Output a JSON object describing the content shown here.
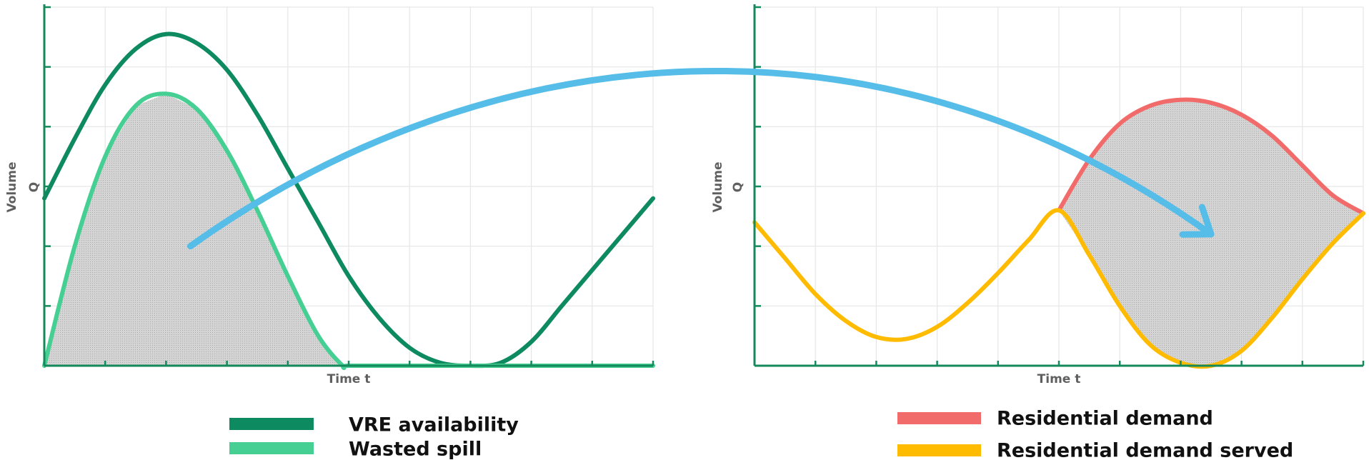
{
  "chart_data": [
    {
      "type": "line",
      "title": "",
      "xlabel": "Time t",
      "ylabel": "Volume",
      "ylabel_symbol": "Q",
      "xlim": [
        0,
        10
      ],
      "ylim": [
        0,
        6
      ],
      "grid": true,
      "series": [
        {
          "name": "VRE availability",
          "color": "#0e8a60",
          "x": [
            0,
            0.5,
            1,
            1.5,
            2,
            2.5,
            3,
            3.5,
            4,
            4.5,
            5,
            5.5,
            6,
            6.5,
            7,
            7.5,
            8,
            8.5,
            9,
            9.5,
            10
          ],
          "y": [
            2.8,
            3.8,
            4.7,
            5.3,
            5.55,
            5.4,
            4.95,
            4.2,
            3.3,
            2.4,
            1.5,
            0.8,
            0.3,
            0.05,
            0.0,
            0.05,
            0.4,
            1.0,
            1.6,
            2.2,
            2.8
          ]
        },
        {
          "name": "Wasted spill",
          "color": "#46cf93",
          "x": [
            0,
            0.5,
            1,
            1.5,
            2,
            2.5,
            3,
            3.5,
            4,
            4.5,
            4.9,
            5,
            6,
            7,
            8,
            9,
            10
          ],
          "y": [
            0,
            2.0,
            3.5,
            4.35,
            4.55,
            4.3,
            3.6,
            2.6,
            1.5,
            0.5,
            0,
            0,
            0,
            0,
            0,
            0,
            0
          ]
        }
      ],
      "shaded_area": {
        "series": "Wasted spill",
        "x_range": [
          0,
          4.9
        ],
        "fill": "#d2d2d2"
      }
    },
    {
      "type": "line",
      "title": "",
      "xlabel": "Time t",
      "ylabel": "Volume",
      "ylabel_symbol": "Q",
      "xlim": [
        0,
        10
      ],
      "ylim": [
        0,
        6
      ],
      "grid": true,
      "series": [
        {
          "name": "Residential demand",
          "color": "#f26b6b",
          "x": [
            5,
            5.5,
            6,
            6.5,
            7,
            7.5,
            8,
            8.5,
            9,
            9.5,
            10
          ],
          "y": [
            2.6,
            3.45,
            4.05,
            4.35,
            4.45,
            4.4,
            4.2,
            3.85,
            3.35,
            2.85,
            2.55
          ]
        },
        {
          "name": "Residential demand served",
          "color": "#ffbb00",
          "x": [
            0,
            0.5,
            1,
            1.5,
            2,
            2.5,
            3,
            3.5,
            4,
            4.5,
            5,
            5.5,
            6,
            6.5,
            7,
            7.5,
            8,
            8.5,
            9,
            9.5,
            10
          ],
          "y": [
            2.4,
            1.8,
            1.2,
            0.75,
            0.48,
            0.45,
            0.65,
            1.05,
            1.55,
            2.1,
            2.6,
            1.85,
            1.0,
            0.35,
            0.05,
            0.0,
            0.25,
            0.8,
            1.45,
            2.05,
            2.55
          ]
        }
      ],
      "shaded_area": {
        "between": [
          "Residential demand",
          "Residential demand served"
        ],
        "x_range": [
          5,
          10
        ],
        "fill": "#d2d2d2"
      }
    }
  ],
  "transfer_arrow": {
    "color": "#55bde8",
    "from_chart": 0,
    "from": [
      2.4,
      2.0
    ],
    "to_chart": 1,
    "to": [
      7.5,
      2.2
    ]
  },
  "legend": [
    {
      "label": "VRE availability",
      "color": "#0e8a60"
    },
    {
      "label": "Wasted spill",
      "color": "#46cf93"
    },
    {
      "label": "Residential demand",
      "color": "#f26b6b"
    },
    {
      "label": "Residential demand served",
      "color": "#ffbb00"
    }
  ]
}
